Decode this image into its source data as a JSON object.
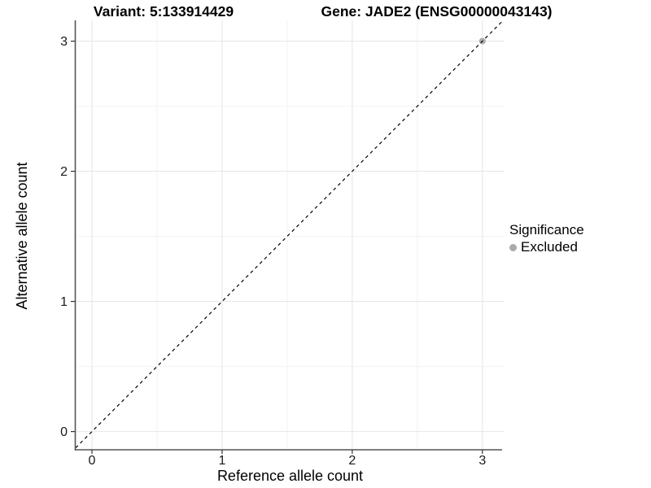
{
  "chart_data": {
    "type": "scatter",
    "title_left": "Variant: 5:133914429",
    "title_right": "Gene: JADE2 (ENSG00000043143)",
    "xlabel": "Reference allele count",
    "ylabel": "Alternative allele count",
    "x_ticks": [
      0,
      1,
      2,
      3
    ],
    "y_ticks": [
      0,
      1,
      2,
      3
    ],
    "minor_x": [
      0.5,
      1.5,
      2.5
    ],
    "minor_y": [
      0.5,
      1.5,
      2.5
    ],
    "xlim": [
      -0.125,
      3.17
    ],
    "ylim": [
      -0.14,
      3.16
    ],
    "grid": "major+minor",
    "reference_line": {
      "type": "identity",
      "style": "dashed",
      "color": "#000000"
    },
    "series": [
      {
        "name": "Excluded",
        "color": "#ababab",
        "points": [
          {
            "x": 3,
            "y": 3
          }
        ]
      }
    ],
    "legend": {
      "title": "Significance",
      "position": "right",
      "items": [
        {
          "label": "Excluded",
          "color": "#ababab"
        }
      ]
    },
    "colors": {
      "major_grid": "#e5e5e5",
      "minor_grid": "#f2f2f2",
      "axis_line": "#555555",
      "tick_mark": "#333333",
      "tick_label": "#1a1a1a"
    }
  }
}
